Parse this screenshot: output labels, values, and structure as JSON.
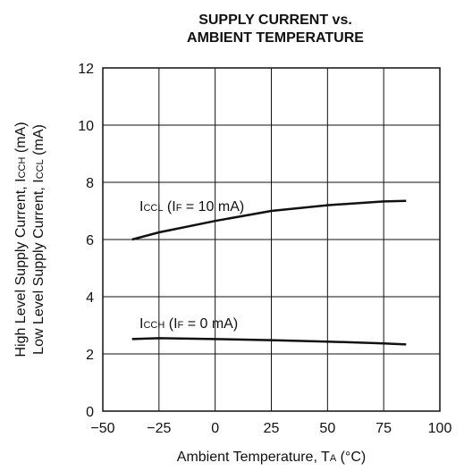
{
  "chart_data": {
    "type": "line",
    "title": [
      "SUPPLY CURRENT vs.",
      "AMBIENT TEMPERATURE"
    ],
    "x_label_parts": [
      "Ambient Temperature, T",
      "A",
      " (°C)"
    ],
    "y_label_lines": [
      [
        "High Level Supply Current, I",
        "CCH",
        " (mA)"
      ],
      [
        "Low Level Supply Current, I",
        "CCL",
        " (mA)"
      ]
    ],
    "xlim": [
      -50,
      100
    ],
    "xticks": [
      {
        "value": -50,
        "label": "−50"
      },
      {
        "value": -25,
        "label": "−25"
      },
      0,
      25,
      50,
      75,
      100
    ],
    "ylim": [
      0,
      12
    ],
    "yticks": [
      0,
      2,
      4,
      6,
      8,
      10,
      12
    ],
    "grid": true,
    "series": [
      {
        "label_parts": [
          "I",
          "CCL",
          " (I",
          "F",
          " = 10 mA)"
        ],
        "color": "#111111",
        "x": [
          -37,
          -25,
          0,
          25,
          50,
          75,
          85
        ],
        "values": [
          6.0,
          6.25,
          6.65,
          7.0,
          7.2,
          7.33,
          7.35
        ]
      },
      {
        "label_parts": [
          "I",
          "CCH",
          " (I",
          "F",
          " = 0 mA)"
        ],
        "color": "#111111",
        "x": [
          -37,
          -25,
          0,
          25,
          50,
          75,
          85
        ],
        "values": [
          2.52,
          2.55,
          2.52,
          2.48,
          2.43,
          2.37,
          2.33
        ]
      }
    ]
  }
}
